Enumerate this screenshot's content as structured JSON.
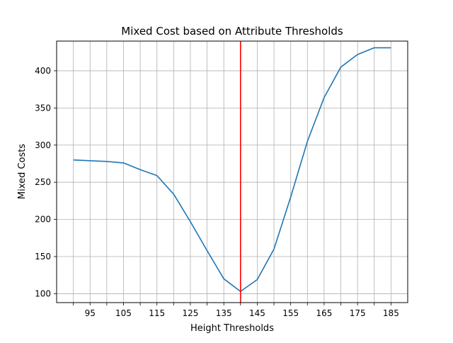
{
  "chart_data": {
    "type": "line",
    "title": "Mixed Cost based on Attribute Thresholds",
    "xlabel": "Height Thresholds",
    "ylabel": "Mixed Costs",
    "xlim": [
      85,
      190
    ],
    "ylim": [
      88,
      440
    ],
    "grid": true,
    "x_tick_values": [
      90,
      95,
      100,
      105,
      110,
      115,
      120,
      125,
      130,
      135,
      140,
      145,
      150,
      155,
      160,
      165,
      170,
      175,
      180,
      185
    ],
    "x_tick_labels": [
      95,
      105,
      115,
      125,
      135,
      145,
      155,
      165,
      175,
      185
    ],
    "y_ticks": [
      100,
      150,
      200,
      250,
      300,
      350,
      400
    ],
    "x": [
      90,
      95,
      100,
      105,
      110,
      115,
      120,
      125,
      130,
      135,
      140,
      145,
      150,
      155,
      160,
      165,
      170,
      175,
      180,
      185
    ],
    "series": [
      {
        "values": [
          280,
          279,
          278,
          276,
          267,
          259,
          234,
          197,
          158,
          120,
          103,
          119,
          160,
          230,
          305,
          364,
          405,
          422,
          431,
          431
        ],
        "color": "#1f77b4"
      }
    ],
    "vertical_line": {
      "x": 140,
      "color": "#ff0000"
    }
  }
}
